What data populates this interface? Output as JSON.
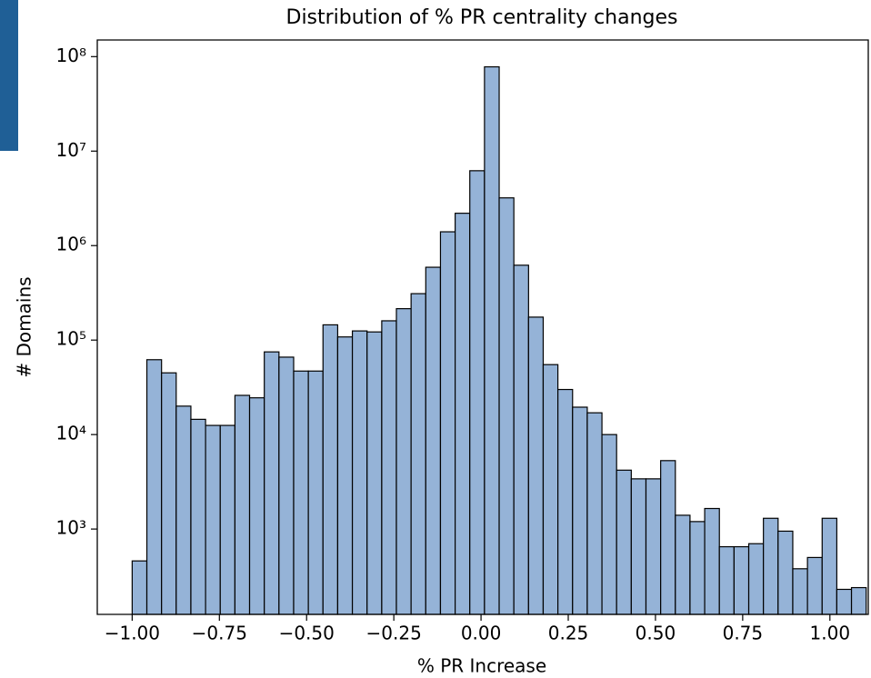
{
  "chart_data": {
    "type": "histogram",
    "title": "Distribution of % PR centrality changes",
    "x_label": "% PR Increase",
    "y_label": "# Domains",
    "color": "#95b3d7",
    "edge_color": "#000000",
    "log_y": true,
    "bins": [
      -1.0,
      -0.9579,
      -0.9158,
      -0.8738,
      -0.8317,
      -0.7896,
      -0.7475,
      -0.7054,
      -0.6634,
      -0.6213,
      -0.5792,
      -0.5371,
      -0.495,
      -0.453,
      -0.4109,
      -0.3688,
      -0.3267,
      -0.2846,
      -0.2426,
      -0.2005,
      -0.1584,
      -0.1163,
      -0.0742,
      -0.0322,
      0.0099,
      0.052,
      0.0941,
      0.1362,
      0.1782,
      0.2203,
      0.2624,
      0.3045,
      0.3466,
      0.3886,
      0.4307,
      0.4728,
      0.5149,
      0.557,
      0.599,
      0.6411,
      0.6832,
      0.7253,
      0.7674,
      0.8094,
      0.8515,
      0.8936,
      0.9357,
      0.9778,
      1.0198,
      1.0619,
      1.104
    ],
    "values": [
      460,
      62000,
      45000,
      20000,
      14500,
      12500,
      12500,
      26000,
      24500,
      75000,
      66000,
      47000,
      47000,
      145000,
      108000,
      125000,
      122000,
      160000,
      215000,
      310000,
      590000,
      1400000,
      2200000,
      6200000,
      78000000,
      3200000,
      620000,
      175000,
      55000,
      30000,
      19500,
      17000,
      10000,
      4200,
      3400,
      3400,
      5300,
      1400,
      1200,
      1650,
      650,
      650,
      700,
      1300,
      950,
      380,
      500,
      1300,
      230,
      240
    ],
    "xlim": [
      -1.1,
      1.11
    ],
    "ylim": [
      125,
      150000000
    ],
    "xticks": [
      {
        "value": -1,
        "label": "−1.00"
      },
      {
        "value": -0.75,
        "label": "−0.75"
      },
      {
        "value": -0.5,
        "label": "−0.50"
      },
      {
        "value": -0.25,
        "label": "−0.25"
      },
      {
        "value": 0,
        "label": "0.00"
      },
      {
        "value": 0.25,
        "label": "0.25"
      },
      {
        "value": 0.5,
        "label": "0.50"
      },
      {
        "value": 0.75,
        "label": "0.75"
      },
      {
        "value": 1,
        "label": "1.00"
      }
    ],
    "yticks": [
      {
        "value": 1000,
        "label": "10³"
      },
      {
        "value": 10000,
        "label": "10⁴"
      },
      {
        "value": 100000,
        "label": "10⁵"
      },
      {
        "value": 1000000,
        "label": "10⁶"
      },
      {
        "value": 10000000,
        "label": "10⁷"
      },
      {
        "value": 100000000,
        "label": "10⁸"
      }
    ]
  }
}
